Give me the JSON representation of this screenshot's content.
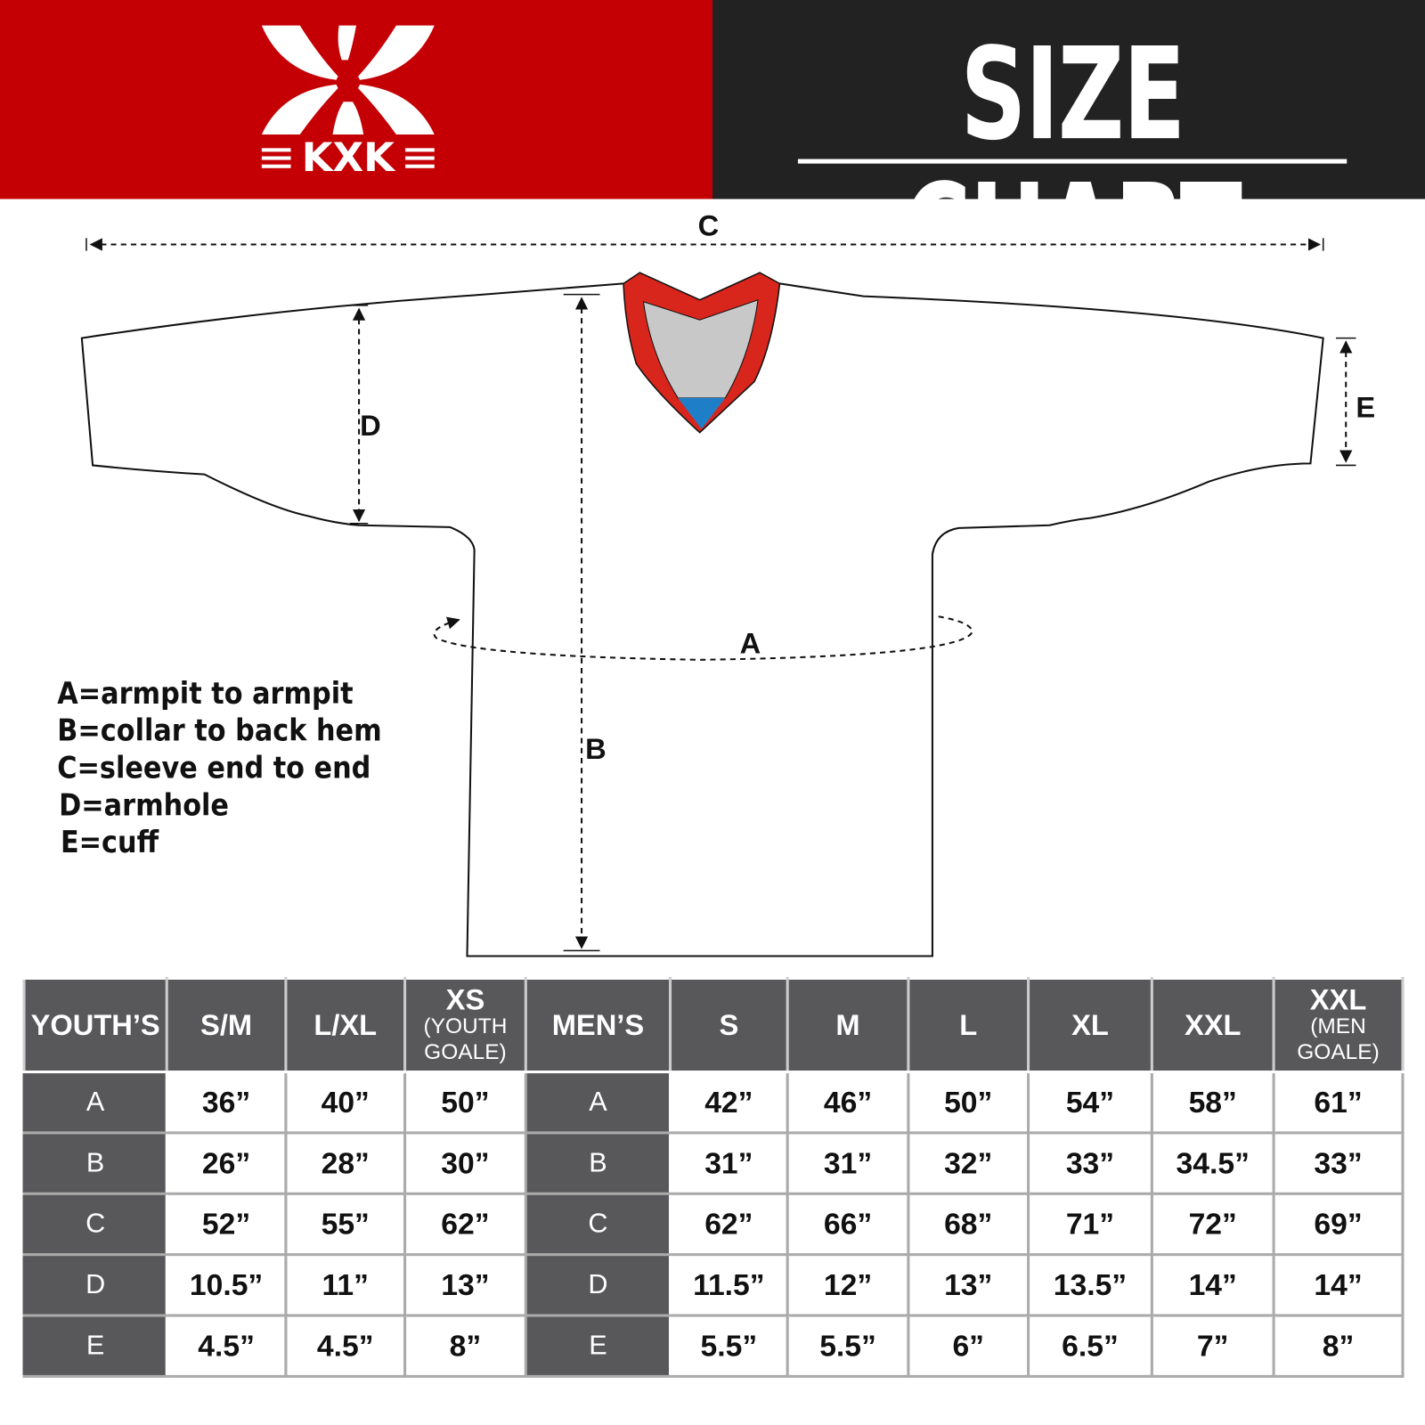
{
  "brand": {
    "logo_text": "KXK",
    "brand_color": "#c40005"
  },
  "header": {
    "title": "SIZE CHART"
  },
  "diagram": {
    "labels": {
      "A": "A",
      "B": "B",
      "C": "C",
      "D": "D",
      "E": "E"
    },
    "legend": [
      "A=armpit to armpit",
      "B=collar to back hem",
      "C=sleeve end to end",
      "D=armhole",
      "E=cuff"
    ],
    "colors": {
      "collar": "#d9261c",
      "insert": "#c8c8c8",
      "tip": "#1e7fc8"
    }
  },
  "table": {
    "youth_label": "YOUTH’S",
    "youth_sizes": [
      {
        "main": "S/M",
        "sub": ""
      },
      {
        "main": "L/XL",
        "sub": ""
      },
      {
        "main": "XS",
        "sub": "(YOUTH GOALE)"
      }
    ],
    "men_label": "MEN’S",
    "men_sizes": [
      {
        "main": "S",
        "sub": ""
      },
      {
        "main": "M",
        "sub": ""
      },
      {
        "main": "L",
        "sub": ""
      },
      {
        "main": "XL",
        "sub": ""
      },
      {
        "main": "XXL",
        "sub": ""
      },
      {
        "main": "XXL",
        "sub": "(MEN GOALE)"
      }
    ],
    "rows": [
      {
        "label": "A",
        "youth": [
          "36”",
          "40”",
          "50”"
        ],
        "men": [
          "42”",
          "46”",
          "50”",
          "54”",
          "58”",
          "61”"
        ]
      },
      {
        "label": "B",
        "youth": [
          "26”",
          "28”",
          "30”"
        ],
        "men": [
          "31”",
          "31”",
          "32”",
          "33”",
          "34.5”",
          "33”"
        ]
      },
      {
        "label": "C",
        "youth": [
          "52”",
          "55”",
          "62”"
        ],
        "men": [
          "62”",
          "66”",
          "68”",
          "71”",
          "72”",
          "69”"
        ]
      },
      {
        "label": "D",
        "youth": [
          "10.5”",
          "11”",
          "13”"
        ],
        "men": [
          "11.5”",
          "12”",
          "13”",
          "13.5”",
          "14”",
          "14”"
        ]
      },
      {
        "label": "E",
        "youth": [
          "4.5”",
          "4.5”",
          "8”"
        ],
        "men": [
          "5.5”",
          "5.5”",
          "6”",
          "6.5”",
          "7”",
          "8”"
        ]
      }
    ]
  }
}
